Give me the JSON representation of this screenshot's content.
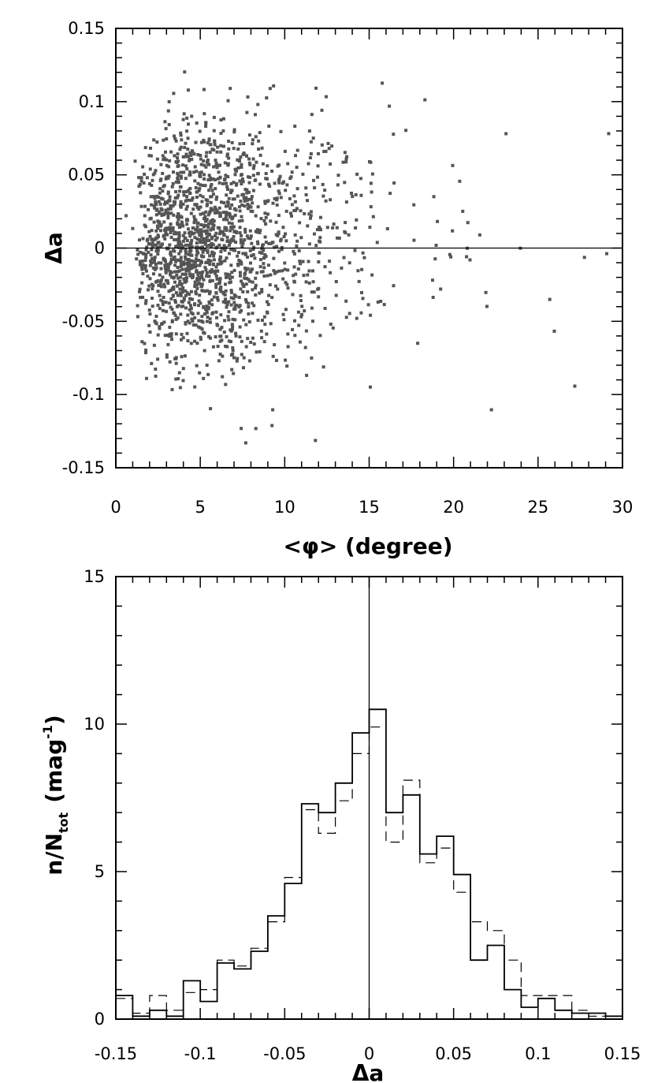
{
  "chart_data": [
    {
      "type": "scatter",
      "xlabel": "<φ> (degree)",
      "ylabel": "Δa",
      "xlim": [
        0,
        30
      ],
      "ylim": [
        -0.15,
        0.15
      ],
      "xticks": [
        "0",
        "5",
        "10",
        "15",
        "20",
        "25",
        "30"
      ],
      "yticks": [
        "-0.15",
        "-0.1",
        "-0.05",
        "0",
        "0.05",
        "0.1",
        "0.15"
      ],
      "reference_line_y": 0,
      "point_color": "#555555",
      "points_estimated": 1800
    },
    {
      "type": "histogram",
      "xlabel": "Δa",
      "ylabel": "n/N_tot (mag⁻¹)",
      "ylabel_main": "n/N",
      "ylabel_sub": "tot",
      "ylabel_unit": "(mag",
      "ylabel_exp": "-1",
      "ylabel_close": ")",
      "xlim": [
        -0.15,
        0.15
      ],
      "ylim": [
        0,
        15
      ],
      "xticks": [
        "-0.15",
        "-0.1",
        "-0.05",
        "0",
        "0.05",
        "0.1",
        "0.15"
      ],
      "yticks": [
        "0",
        "5",
        "10",
        "15"
      ],
      "reference_line_x": 0,
      "bin_edges": [
        -0.15,
        -0.14,
        -0.13,
        -0.12,
        -0.11,
        -0.1,
        -0.09,
        -0.08,
        -0.07,
        -0.06,
        -0.05,
        -0.04,
        -0.03,
        -0.02,
        -0.01,
        0.0,
        0.01,
        0.02,
        0.03,
        0.04,
        0.05,
        0.06,
        0.07,
        0.08,
        0.09,
        0.1,
        0.11,
        0.12,
        0.13,
        0.14,
        0.15
      ],
      "series": [
        {
          "style": "solid",
          "values": [
            0.8,
            0.1,
            0.3,
            0.1,
            1.3,
            0.6,
            1.9,
            1.7,
            2.3,
            3.5,
            4.6,
            7.3,
            7.0,
            8.0,
            9.7,
            10.5,
            7.0,
            7.6,
            5.6,
            6.2,
            4.9,
            2.0,
            2.5,
            1.0,
            0.4,
            0.7,
            0.3,
            0.2,
            0.2,
            0.1
          ]
        },
        {
          "style": "dashed",
          "values": [
            0.7,
            0.2,
            0.8,
            0.3,
            0.9,
            1.0,
            2.0,
            1.8,
            2.4,
            3.3,
            4.8,
            7.1,
            6.3,
            7.4,
            9.0,
            9.9,
            6.0,
            8.1,
            5.3,
            5.8,
            4.3,
            3.3,
            3.0,
            2.0,
            0.8,
            0.8,
            0.8,
            0.3,
            0.1,
            0.1
          ]
        }
      ]
    }
  ]
}
